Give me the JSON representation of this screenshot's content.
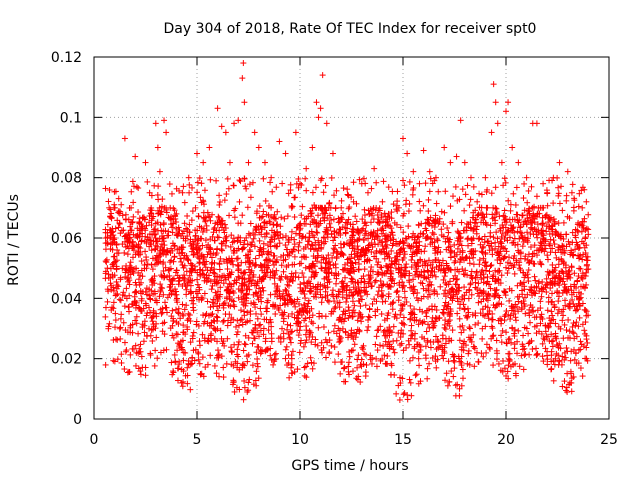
{
  "chart_data": {
    "type": "scatter",
    "title": "Day 304 of 2018, Rate Of TEC Index for receiver spt0",
    "xlabel": "GPS time / hours",
    "ylabel": "ROTI / TECUs",
    "xlim": [
      0,
      25
    ],
    "ylim": [
      0,
      0.12
    ],
    "x_ticks": [
      0,
      5,
      10,
      15,
      20,
      25
    ],
    "x_tick_labels": [
      "0",
      "5",
      "10",
      "15",
      "20",
      "25"
    ],
    "y_ticks": [
      0,
      0.02,
      0.04,
      0.06,
      0.08,
      0.1,
      0.12
    ],
    "y_tick_labels": [
      "0",
      "0.02",
      "0.04",
      "0.06",
      "0.08",
      "0.1",
      "0.12"
    ],
    "grid": true,
    "series": [
      {
        "name": "spt0 ROTI",
        "color": "#ff0000",
        "marker": "plus",
        "x": [
          0.6,
          0.65,
          0.7,
          0.8,
          1.0,
          1.2,
          1.5,
          1.8,
          2.0,
          2.2,
          2.5,
          2.7,
          3.0,
          3.1,
          3.2,
          3.4,
          3.5,
          3.7,
          4.0,
          4.3,
          4.6,
          5.0,
          5.3,
          5.6,
          6.0,
          6.2,
          6.4,
          6.6,
          6.8,
          7.0,
          7.2,
          7.25,
          7.3,
          7.5,
          7.8,
          8.0,
          8.3,
          8.6,
          9.0,
          9.3,
          9.6,
          9.8,
          10.0,
          10.3,
          10.6,
          10.8,
          10.9,
          11.0,
          11.1,
          11.3,
          11.6,
          12.0,
          12.3,
          12.6,
          13.0,
          13.3,
          13.6,
          14.0,
          14.3,
          14.6,
          14.8,
          15.0,
          15.2,
          15.5,
          15.8,
          16.0,
          16.3,
          16.6,
          17.0,
          17.3,
          17.6,
          17.8,
          18.0,
          18.3,
          18.6,
          19.0,
          19.3,
          19.4,
          19.5,
          19.6,
          19.8,
          20.0,
          20.1,
          20.3,
          20.6,
          21.0,
          21.3,
          21.5,
          21.8,
          22.0,
          22.3,
          22.6,
          23.0,
          23.2,
          23.5,
          23.7,
          23.8,
          23.9
        ],
        "y": [
          0.052,
          0.05,
          0.048,
          0.045,
          0.06,
          0.055,
          0.093,
          0.07,
          0.087,
          0.065,
          0.085,
          0.075,
          0.098,
          0.09,
          0.082,
          0.099,
          0.095,
          0.07,
          0.068,
          0.075,
          0.08,
          0.088,
          0.085,
          0.09,
          0.103,
          0.097,
          0.095,
          0.085,
          0.098,
          0.099,
          0.113,
          0.118,
          0.105,
          0.085,
          0.095,
          0.09,
          0.085,
          0.08,
          0.092,
          0.088,
          0.07,
          0.095,
          0.078,
          0.083,
          0.09,
          0.105,
          0.1,
          0.103,
          0.114,
          0.098,
          0.088,
          0.07,
          0.065,
          0.072,
          0.078,
          0.075,
          0.083,
          0.072,
          0.068,
          0.065,
          0.07,
          0.093,
          0.088,
          0.082,
          0.078,
          0.089,
          0.082,
          0.08,
          0.09,
          0.085,
          0.087,
          0.099,
          0.085,
          0.08,
          0.072,
          0.08,
          0.095,
          0.111,
          0.105,
          0.098,
          0.085,
          0.102,
          0.105,
          0.09,
          0.085,
          0.08,
          0.098,
          0.098,
          0.078,
          0.075,
          0.08,
          0.085,
          0.082,
          0.075,
          0.065,
          0.07,
          0.076,
          0.072
        ]
      }
    ],
    "background_cloud": {
      "x_range": [
        0.55,
        24.0
      ],
      "y_range": [
        0.003,
        0.07
      ],
      "dense_band": [
        0.01,
        0.05
      ],
      "description_values": [
        "0.005",
        "0.01",
        "0.02",
        "0.03",
        "0.04",
        "0.05",
        "0.06",
        "0.07"
      ]
    }
  }
}
